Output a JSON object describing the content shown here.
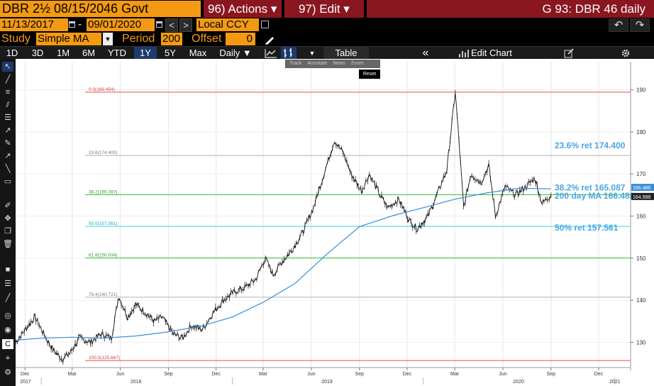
{
  "header": {
    "security": "DBR 2½ 08/15/2046 Govt",
    "actions": "96) Actions ▾",
    "edit": "97) Edit ▾",
    "title": "G 93: DBR 46 daily",
    "start_date": "11/13/2017",
    "dash": "-",
    "end_date": "09/01/2020",
    "currency": "Local CCY",
    "nav_prev": "<",
    "nav_next": ">",
    "undo": "↶",
    "redo": "↷"
  },
  "study": {
    "study_label": "Study",
    "study_value": "Simple MA",
    "period_label": "Period",
    "period_value": "200",
    "offset_label": "Offset",
    "offset_value": "0",
    "pen_icon": "pencil-icon"
  },
  "toolbar": {
    "periods": [
      "1D",
      "3D",
      "1M",
      "6M",
      "YTD",
      "1Y",
      "5Y",
      "Max"
    ],
    "active_period": "1Y",
    "frequency": "Daily ▼",
    "table": "Table",
    "collapse": "«",
    "edit_chart": "Edit Chart",
    "settings_icon": "gear-icon"
  },
  "mini_toolbar": {
    "items": [
      "Track",
      "Annotate",
      "News",
      "Zoom"
    ],
    "reset": "Reset"
  },
  "colors": {
    "accent": "#f39a12",
    "red_button": "#8a1620",
    "price": "#000000",
    "ma": "#3b8fd6",
    "label_blue": "#4aa6e6"
  },
  "chart_data": {
    "type": "line",
    "xlim": [
      "2017-11-13",
      "2021-01-31"
    ],
    "ylim": [
      124,
      195
    ],
    "x_ticks": [
      {
        "label": "Dec",
        "date": "2017-12-01"
      },
      {
        "label": "Mar",
        "date": "2018-03-01"
      },
      {
        "label": "Jun",
        "date": "2018-06-01"
      },
      {
        "label": "Sep",
        "date": "2018-09-01"
      },
      {
        "label": "Dec",
        "date": "2018-12-01"
      },
      {
        "label": "Mar",
        "date": "2019-03-01"
      },
      {
        "label": "Jun",
        "date": "2019-06-01"
      },
      {
        "label": "Sep",
        "date": "2019-09-01"
      },
      {
        "label": "Dec",
        "date": "2019-12-01"
      },
      {
        "label": "Mar",
        "date": "2020-03-01"
      },
      {
        "label": "Jun",
        "date": "2020-06-01"
      },
      {
        "label": "Sep",
        "date": "2020-09-01"
      },
      {
        "label": "Dec",
        "date": "2020-12-01"
      }
    ],
    "year_labels": [
      {
        "label": "2017",
        "date": "2017-11-13"
      },
      {
        "label": "2018",
        "date": "2018-07-01"
      },
      {
        "label": "2019",
        "date": "2019-07-01"
      },
      {
        "label": "2020",
        "date": "2020-07-01"
      },
      {
        "label": "2021",
        "date": "2021-01-01"
      }
    ],
    "y_ticks": [
      130,
      140,
      150,
      160,
      170,
      180,
      190
    ],
    "fib_levels": [
      {
        "label": "0.0(189.454)",
        "value": 189.454,
        "color": "#e05050"
      },
      {
        "label": "23.6(174.400)",
        "value": 174.4,
        "color": "#b0b0b0"
      },
      {
        "label": "38.2(165.087)",
        "value": 165.087,
        "color": "#2ec02e"
      },
      {
        "label": "50.0(157.561)",
        "value": 157.561,
        "color": "#33d6e0"
      },
      {
        "label": "61.8(150.034)",
        "value": 150.034,
        "color": "#2ec02e"
      },
      {
        "label": "76.4(140.721)",
        "value": 140.721,
        "color": "#b0b0b0"
      },
      {
        "label": "100.0(125.667)",
        "value": 125.667,
        "color": "#e05050"
      }
    ],
    "annotations": [
      {
        "text": "23.6% ret 174.400",
        "value": 174.4
      },
      {
        "text": "38.2% ret 165.087",
        "value": 165.087
      },
      {
        "text": "200 day MA 166.486",
        "value": 166.486
      },
      {
        "text": "50% ret 157.561",
        "value": 157.561
      }
    ],
    "last_price_tags": [
      {
        "text": "166.486",
        "value": 166.486,
        "bg": "#3b8fd6"
      },
      {
        "text": "164.998",
        "value": 164.998,
        "bg": "#222222"
      }
    ],
    "series": [
      {
        "name": "DBR 46",
        "x": [
          "2017-11-13",
          "2017-12-01",
          "2017-12-20",
          "2018-01-10",
          "2018-01-25",
          "2018-02-10",
          "2018-02-25",
          "2018-03-15",
          "2018-04-05",
          "2018-04-25",
          "2018-05-15",
          "2018-05-29",
          "2018-06-15",
          "2018-07-01",
          "2018-07-20",
          "2018-08-05",
          "2018-08-20",
          "2018-09-10",
          "2018-09-28",
          "2018-10-15",
          "2018-11-05",
          "2018-11-25",
          "2018-12-15",
          "2019-01-05",
          "2019-01-25",
          "2019-02-15",
          "2019-03-05",
          "2019-03-20",
          "2019-04-05",
          "2019-04-25",
          "2019-05-15",
          "2019-06-05",
          "2019-06-25",
          "2019-07-15",
          "2019-08-01",
          "2019-08-16",
          "2019-09-05",
          "2019-09-20",
          "2019-10-10",
          "2019-10-25",
          "2019-11-15",
          "2019-12-05",
          "2019-12-20",
          "2020-01-10",
          "2020-01-30",
          "2020-02-15",
          "2020-03-02",
          "2020-03-09",
          "2020-03-18",
          "2020-04-01",
          "2020-04-20",
          "2020-05-05",
          "2020-05-18",
          "2020-06-05",
          "2020-06-25",
          "2020-07-15",
          "2020-08-01",
          "2020-08-15",
          "2020-09-01"
        ],
        "y": [
          130,
          133,
          136,
          131,
          128,
          126,
          127.5,
          131,
          130,
          132,
          131,
          141,
          136,
          139,
          137,
          135,
          136,
          132,
          131,
          134,
          133,
          137,
          140,
          142,
          143,
          145,
          150,
          146,
          149,
          152,
          156,
          162,
          170,
          178,
          175,
          170,
          166,
          170,
          165,
          162,
          164,
          159,
          157,
          160,
          166,
          171,
          189.5,
          178,
          162,
          170,
          168,
          172,
          160,
          167,
          165,
          167,
          169,
          163,
          165
        ]
      },
      {
        "name": "200 day MA",
        "x": [
          "2017-11-13",
          "2018-01-01",
          "2018-03-01",
          "2018-05-01",
          "2018-07-01",
          "2018-09-01",
          "2018-11-01",
          "2019-01-01",
          "2019-03-01",
          "2019-05-01",
          "2019-07-01",
          "2019-09-01",
          "2019-11-01",
          "2020-01-01",
          "2020-03-01",
          "2020-05-01",
          "2020-07-01",
          "2020-09-01"
        ],
        "y": [
          130.5,
          131,
          131.2,
          131,
          131.5,
          132.5,
          133.8,
          136,
          139.5,
          144,
          151,
          157.5,
          160,
          162,
          164,
          165.5,
          166.6,
          166.486
        ]
      }
    ]
  }
}
